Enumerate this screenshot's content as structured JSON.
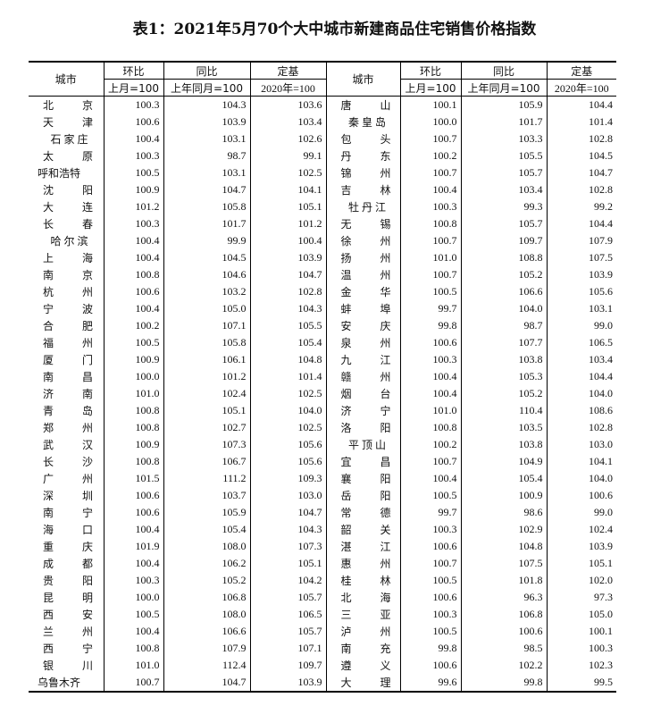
{
  "title": "表1：2021年5月70个大中城市新建商品住宅销售价格指数",
  "header": {
    "city": "城市",
    "mom": "环比",
    "mom_base": "上月=100",
    "yoy": "同比",
    "yoy_base": "上年同月=100",
    "fixed": "定基",
    "fixed_base": "2020年=100"
  },
  "left_rows": [
    [
      "北京",
      "100.3",
      "104.3",
      "103.6"
    ],
    [
      "天津",
      "100.6",
      "103.9",
      "103.4"
    ],
    [
      "石家庄",
      "100.4",
      "103.1",
      "102.6"
    ],
    [
      "太原",
      "100.3",
      "98.7",
      "99.1"
    ],
    [
      "呼和浩特",
      "100.5",
      "103.1",
      "102.5"
    ],
    [
      "沈阳",
      "100.9",
      "104.7",
      "104.1"
    ],
    [
      "大连",
      "101.2",
      "105.8",
      "105.1"
    ],
    [
      "长春",
      "100.3",
      "101.7",
      "101.2"
    ],
    [
      "哈尔滨",
      "100.4",
      "99.9",
      "100.4"
    ],
    [
      "上海",
      "100.4",
      "104.5",
      "103.9"
    ],
    [
      "南京",
      "100.8",
      "104.6",
      "104.7"
    ],
    [
      "杭州",
      "100.6",
      "103.2",
      "102.8"
    ],
    [
      "宁波",
      "100.4",
      "105.0",
      "104.3"
    ],
    [
      "合肥",
      "100.2",
      "107.1",
      "105.5"
    ],
    [
      "福州",
      "100.5",
      "105.8",
      "105.4"
    ],
    [
      "厦门",
      "100.9",
      "106.1",
      "104.8"
    ],
    [
      "南昌",
      "100.0",
      "101.2",
      "101.4"
    ],
    [
      "济南",
      "101.0",
      "102.4",
      "102.5"
    ],
    [
      "青岛",
      "100.8",
      "105.1",
      "104.0"
    ],
    [
      "郑州",
      "100.8",
      "102.7",
      "102.5"
    ],
    [
      "武汉",
      "100.9",
      "107.3",
      "105.6"
    ],
    [
      "长沙",
      "100.8",
      "106.7",
      "105.6"
    ],
    [
      "广州",
      "101.5",
      "111.2",
      "109.3"
    ],
    [
      "深圳",
      "100.6",
      "103.7",
      "103.0"
    ],
    [
      "南宁",
      "100.6",
      "105.9",
      "104.7"
    ],
    [
      "海口",
      "100.4",
      "105.4",
      "104.3"
    ],
    [
      "重庆",
      "101.9",
      "108.0",
      "107.3"
    ],
    [
      "成都",
      "100.4",
      "106.2",
      "105.1"
    ],
    [
      "贵阳",
      "100.3",
      "105.2",
      "104.2"
    ],
    [
      "昆明",
      "100.0",
      "106.8",
      "105.7"
    ],
    [
      "西安",
      "100.5",
      "108.0",
      "106.5"
    ],
    [
      "兰州",
      "100.4",
      "106.6",
      "105.7"
    ],
    [
      "西宁",
      "100.8",
      "107.9",
      "107.1"
    ],
    [
      "银川",
      "101.0",
      "112.4",
      "109.7"
    ],
    [
      "乌鲁木齐",
      "100.7",
      "104.7",
      "103.9"
    ]
  ],
  "right_rows": [
    [
      "唐山",
      "100.1",
      "105.9",
      "104.4"
    ],
    [
      "秦皇岛",
      "100.0",
      "101.7",
      "101.4"
    ],
    [
      "包头",
      "100.7",
      "103.3",
      "102.8"
    ],
    [
      "丹东",
      "100.2",
      "105.5",
      "104.5"
    ],
    [
      "锦州",
      "100.7",
      "105.7",
      "104.7"
    ],
    [
      "吉林",
      "100.4",
      "103.4",
      "102.8"
    ],
    [
      "牡丹江",
      "100.3",
      "99.3",
      "99.2"
    ],
    [
      "无锡",
      "100.8",
      "105.7",
      "104.4"
    ],
    [
      "徐州",
      "100.7",
      "109.7",
      "107.9"
    ],
    [
      "扬州",
      "101.0",
      "108.8",
      "107.5"
    ],
    [
      "温州",
      "100.7",
      "105.2",
      "103.9"
    ],
    [
      "金华",
      "100.5",
      "106.6",
      "105.6"
    ],
    [
      "蚌埠",
      "99.7",
      "104.0",
      "103.1"
    ],
    [
      "安庆",
      "99.8",
      "98.7",
      "99.0"
    ],
    [
      "泉州",
      "100.6",
      "107.7",
      "106.5"
    ],
    [
      "九江",
      "100.3",
      "103.8",
      "103.4"
    ],
    [
      "赣州",
      "100.4",
      "105.3",
      "104.4"
    ],
    [
      "烟台",
      "100.4",
      "105.2",
      "104.0"
    ],
    [
      "济宁",
      "101.0",
      "110.4",
      "108.6"
    ],
    [
      "洛阳",
      "100.8",
      "103.5",
      "102.8"
    ],
    [
      "平顶山",
      "100.2",
      "103.8",
      "103.0"
    ],
    [
      "宜昌",
      "100.7",
      "104.9",
      "104.1"
    ],
    [
      "襄阳",
      "100.4",
      "105.4",
      "104.0"
    ],
    [
      "岳阳",
      "100.5",
      "100.9",
      "100.6"
    ],
    [
      "常德",
      "99.7",
      "98.6",
      "99.0"
    ],
    [
      "韶关",
      "100.3",
      "102.9",
      "102.4"
    ],
    [
      "湛江",
      "100.6",
      "104.8",
      "103.9"
    ],
    [
      "惠州",
      "100.7",
      "107.5",
      "105.1"
    ],
    [
      "桂林",
      "100.5",
      "101.8",
      "102.0"
    ],
    [
      "北海",
      "100.6",
      "96.3",
      "97.3"
    ],
    [
      "三亚",
      "100.3",
      "106.8",
      "105.0"
    ],
    [
      "泸州",
      "100.5",
      "100.6",
      "100.1"
    ],
    [
      "南充",
      "99.8",
      "98.5",
      "100.3"
    ],
    [
      "遵义",
      "100.6",
      "102.2",
      "102.3"
    ],
    [
      "大理",
      "99.6",
      "99.8",
      "99.5"
    ]
  ]
}
